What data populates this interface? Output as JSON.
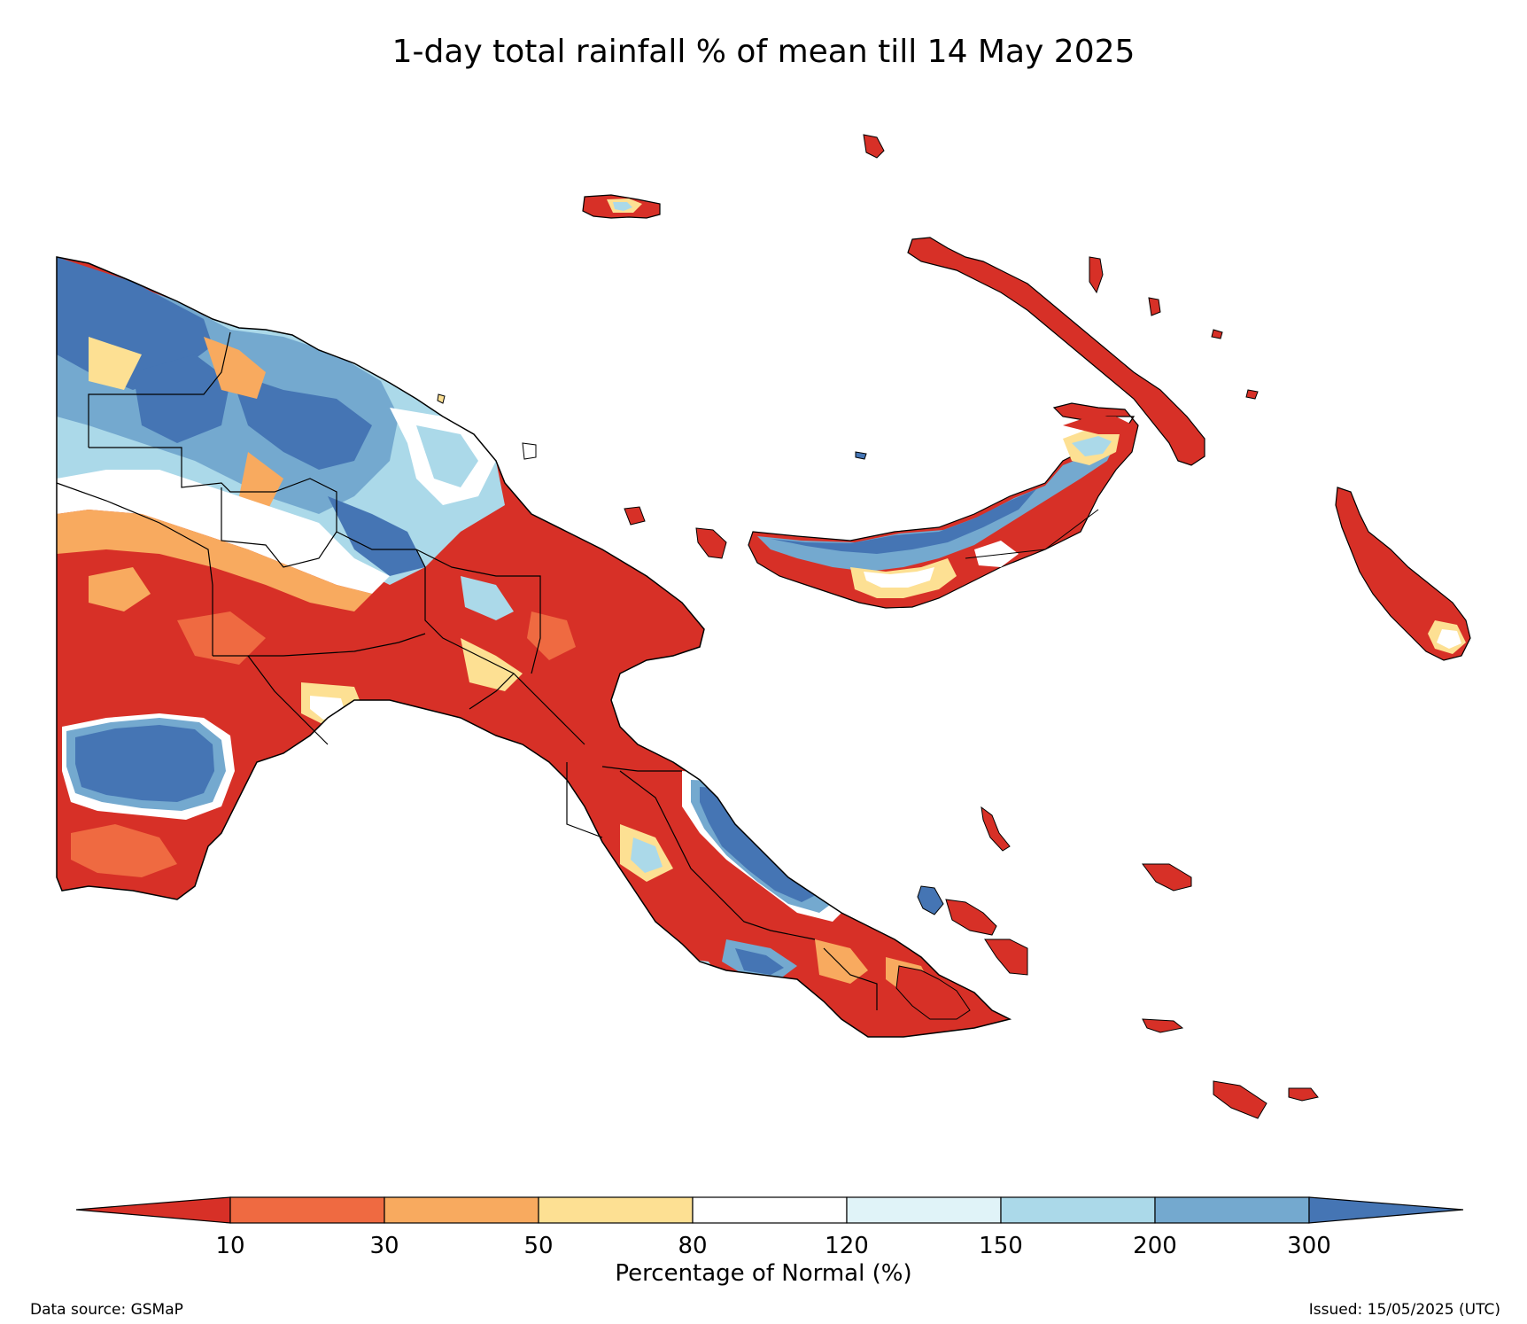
{
  "title": "1-day total rainfall % of mean till 14 May 2025",
  "colorbar": {
    "label": "Percentage of Normal (%)",
    "ticks": [
      "10",
      "30",
      "50",
      "80",
      "120",
      "150",
      "200",
      "300"
    ],
    "bins": [
      {
        "range": "<10",
        "color": "#d73027"
      },
      {
        "range": "10-30",
        "color": "#ef6a41"
      },
      {
        "range": "30-50",
        "color": "#f8aa5f"
      },
      {
        "range": "50-80",
        "color": "#fde093"
      },
      {
        "range": "80-120",
        "color": "#ffffff"
      },
      {
        "range": "120-150",
        "color": "#e0f3f8"
      },
      {
        "range": "150-200",
        "color": "#abd9e9"
      },
      {
        "range": "200-300",
        "color": "#74a9cf"
      },
      {
        "range": ">300",
        "color": "#4575b4"
      }
    ]
  },
  "footer": {
    "source": "Data source: GSMaP",
    "issued": "Issued: 15/05/2025 (UTC)"
  }
}
